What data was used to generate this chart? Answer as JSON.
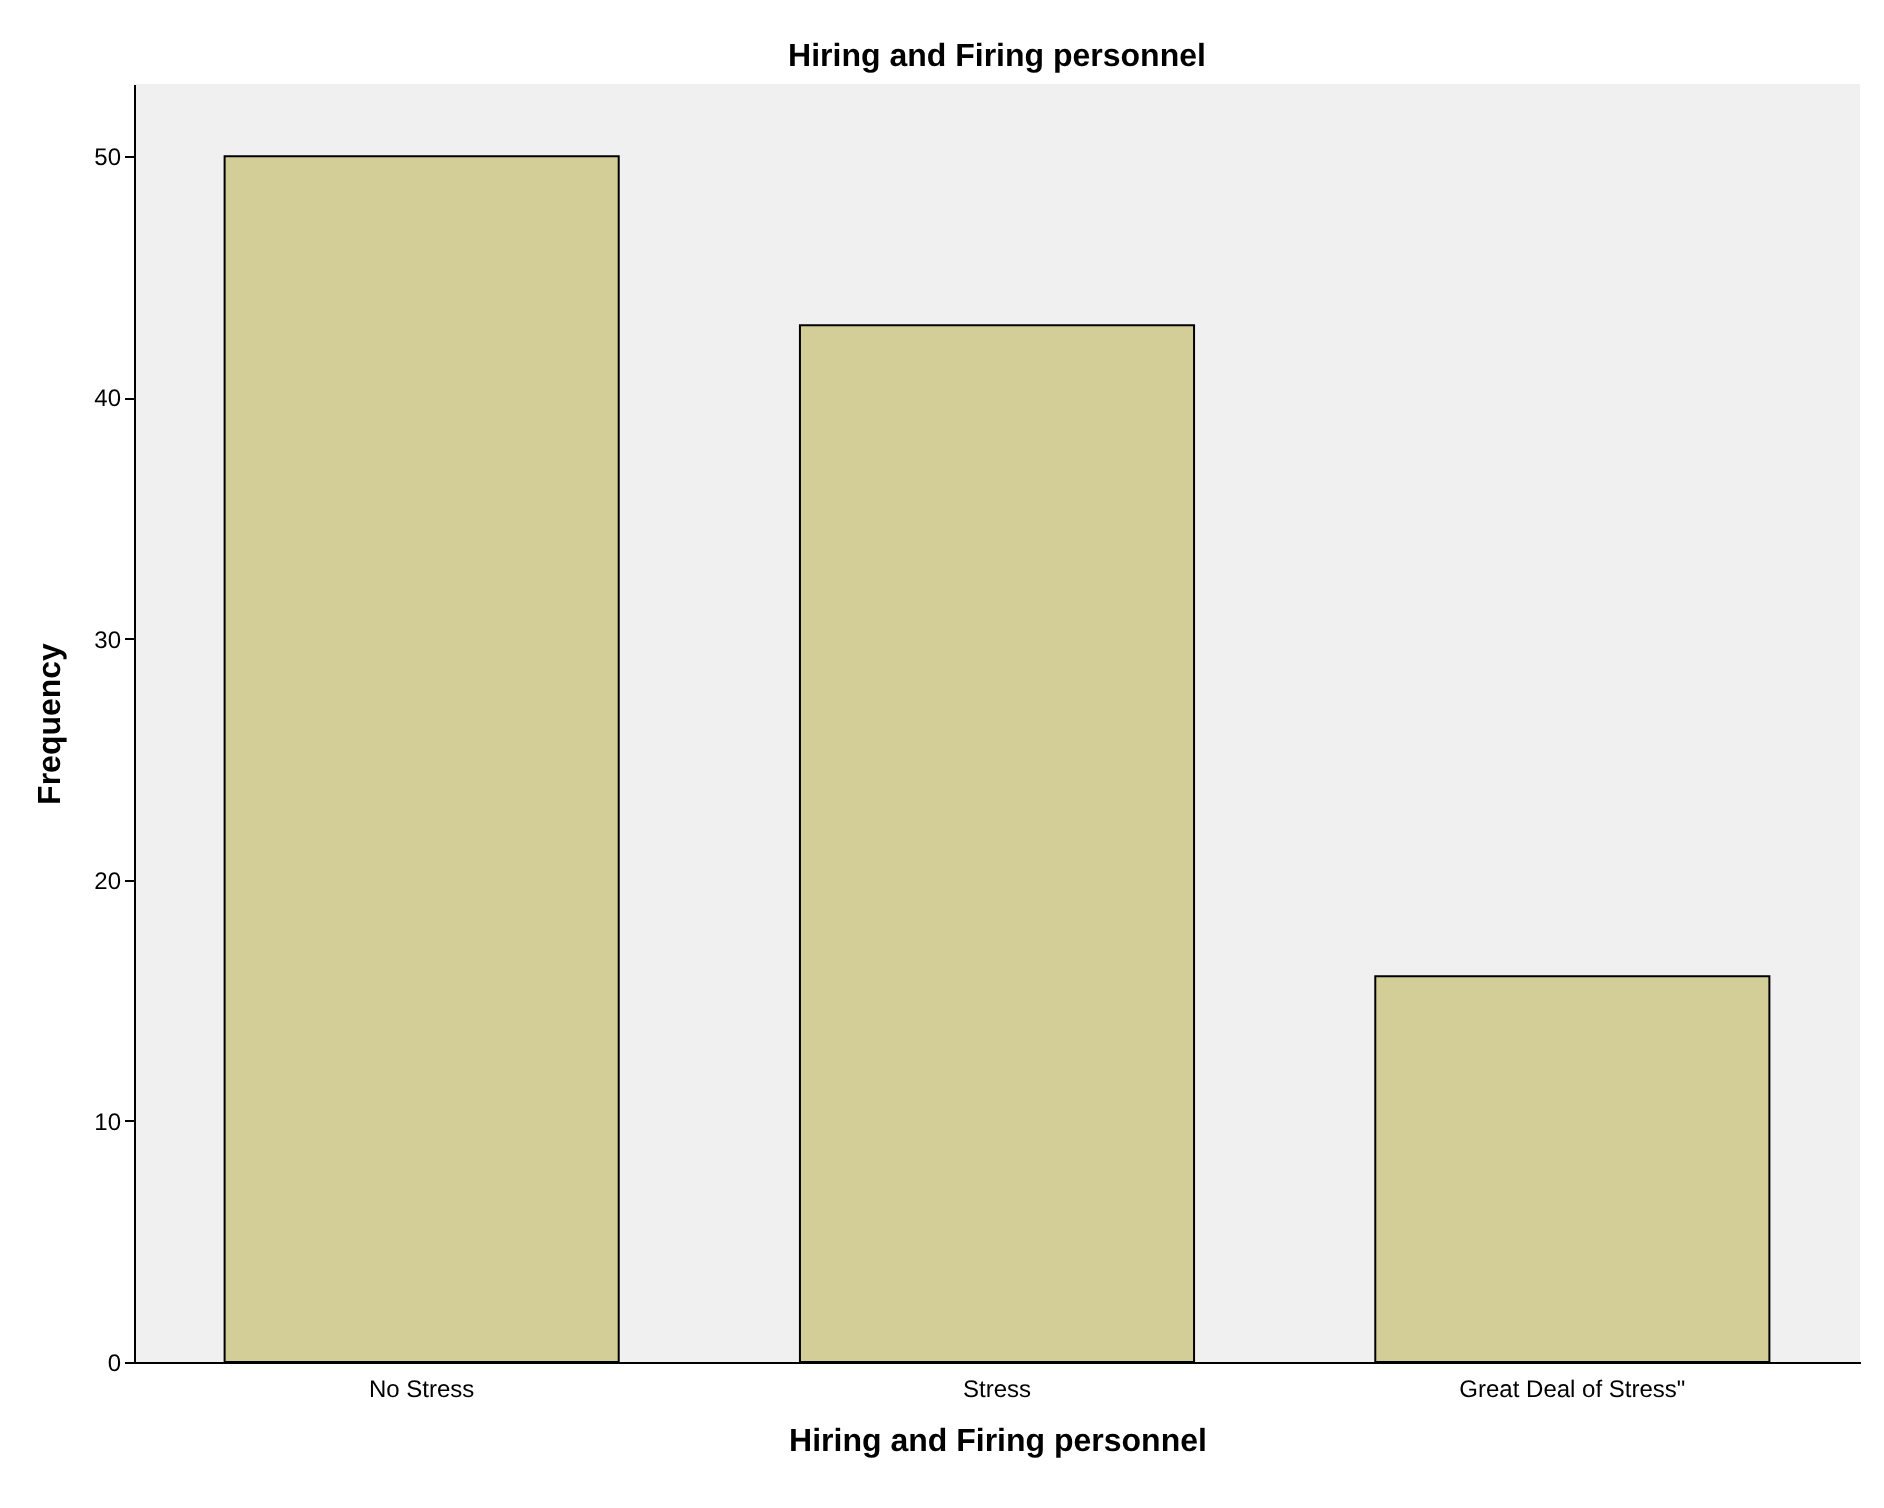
{
  "chart_data": {
    "type": "bar",
    "title": "Hiring and Firing personnel",
    "xlabel": "Hiring and Firing personnel",
    "ylabel": "Frequency",
    "categories": [
      "No Stress",
      "Stress",
      "Great Deal of Stress\""
    ],
    "values": [
      50,
      43,
      16
    ],
    "color": "#d3ce97",
    "ylim": [
      0,
      53
    ],
    "yticks": [
      0,
      10,
      20,
      30,
      40,
      50
    ]
  }
}
